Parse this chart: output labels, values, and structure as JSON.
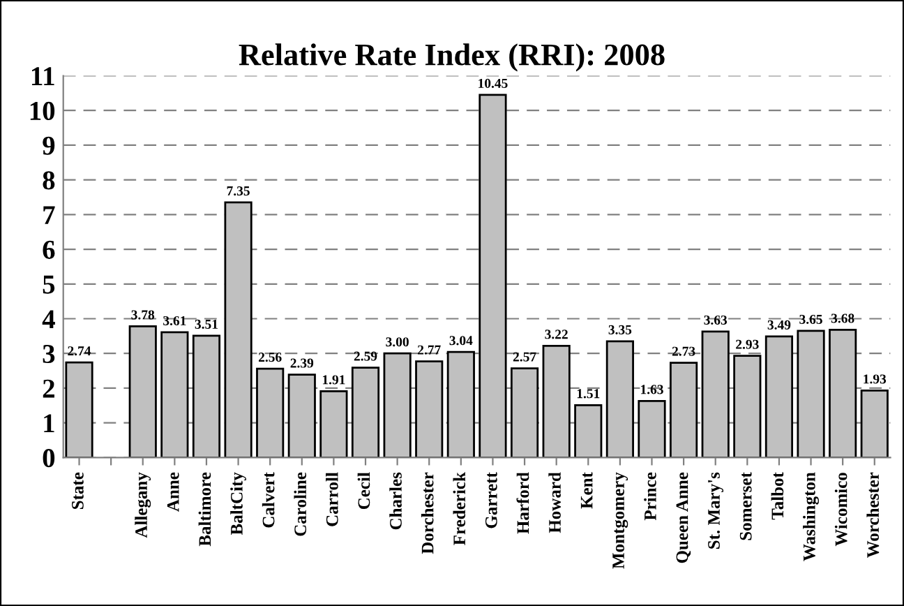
{
  "chart_data": {
    "type": "bar",
    "title": "Relative Rate Index (RRI): 2008",
    "categories": [
      "State",
      null,
      "Allegany",
      "Anne",
      "Baltimore",
      "BaltCity",
      "Calvert",
      "Caroline",
      "Carroll",
      "Cecil",
      "Charles",
      "Dorchester",
      "Frederick",
      "Garrett",
      "Harford",
      "Howard",
      "Kent",
      "Montgomery",
      "Prince",
      "Queen Anne",
      "St. Mary's",
      "Somerset",
      "Talbot",
      "Washington",
      "Wicomico",
      "Worchester"
    ],
    "values": [
      2.74,
      null,
      3.78,
      3.61,
      3.51,
      7.35,
      2.56,
      2.39,
      1.91,
      2.59,
      3.0,
      2.77,
      3.04,
      10.45,
      2.57,
      3.22,
      1.51,
      3.35,
      1.63,
      2.73,
      3.63,
      2.93,
      3.49,
      3.65,
      3.68,
      1.93
    ],
    "value_labels": [
      "2.74",
      null,
      "3.78",
      "3.61",
      "3.51",
      "7.35",
      "2.56",
      "2.39",
      "1.91",
      "2.59",
      "3.00",
      "2.77",
      "3.04",
      "10.45",
      "2.57",
      "3.22",
      "1.51",
      "3.35",
      "1.63",
      "2.73",
      "3.63",
      "2.93",
      "3.49",
      "3.65",
      "3.68",
      "1.93"
    ],
    "color": "#c0c0c0",
    "ylim": [
      0,
      11
    ],
    "yticks": [
      0,
      1,
      2,
      3,
      4,
      5,
      6,
      7,
      8,
      9,
      10,
      11
    ],
    "grid": "y"
  }
}
